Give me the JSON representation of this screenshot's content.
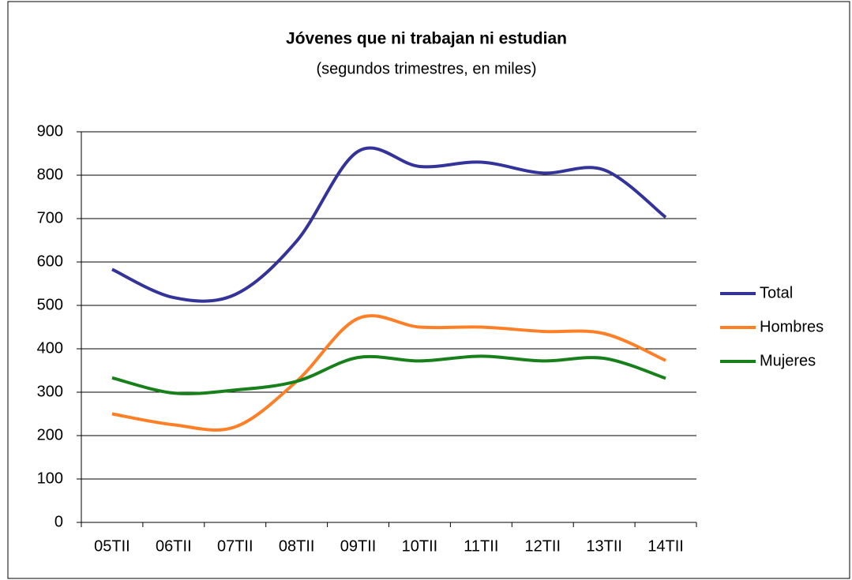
{
  "chart_data": {
    "type": "line",
    "title": "Jóvenes que ni trabajan ni estudian",
    "subtitle": "(segundos trimestres, en miles)",
    "categories": [
      "05TII",
      "06TII",
      "07TII",
      "08TII",
      "09TII",
      "10TII",
      "11TII",
      "12TII",
      "13TII",
      "14TII"
    ],
    "series": [
      {
        "name": "Total",
        "color": "#333399",
        "values": [
          583,
          518,
          525,
          648,
          855,
          820,
          830,
          805,
          812,
          703
        ]
      },
      {
        "name": "Hombres",
        "color": "#ff7f27",
        "values": [
          250,
          225,
          220,
          325,
          470,
          450,
          450,
          440,
          435,
          373
        ]
      },
      {
        "name": "Mujeres",
        "color": "#17801a",
        "values": [
          333,
          298,
          305,
          325,
          380,
          372,
          383,
          372,
          378,
          332
        ]
      }
    ],
    "ylim": [
      0,
      900
    ],
    "yticks": [
      0,
      100,
      200,
      300,
      400,
      500,
      600,
      700,
      800,
      900
    ],
    "grid": true,
    "legend": "right"
  }
}
